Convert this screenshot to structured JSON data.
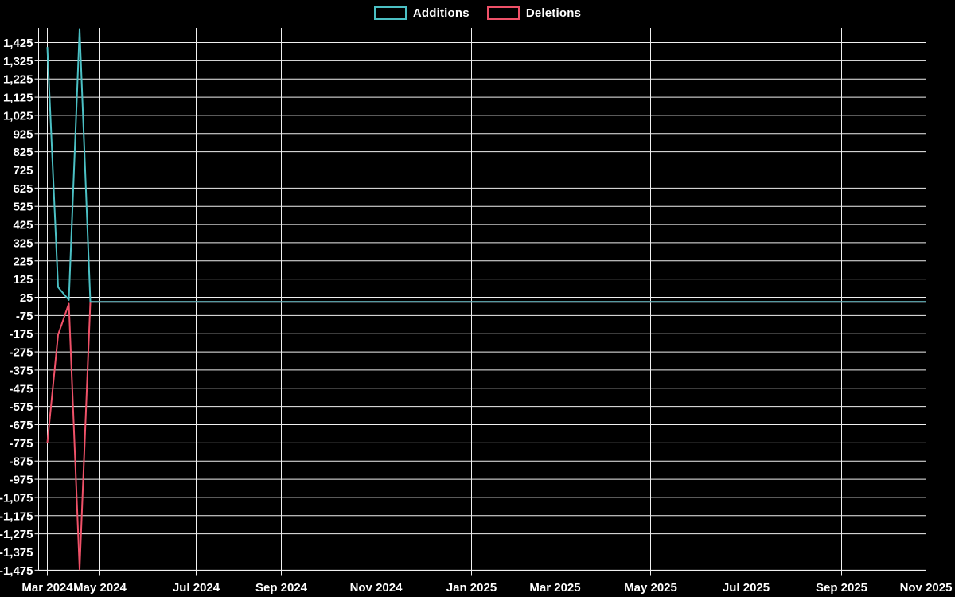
{
  "page": {
    "background_color": "#000000"
  },
  "legend": {
    "items": [
      {
        "label": "Additions",
        "color": "#4bc0c4"
      },
      {
        "label": "Deletions",
        "color": "#ef5168"
      }
    ]
  },
  "chart_data": {
    "type": "line",
    "title": "",
    "xlabel": "",
    "ylabel": "",
    "grid": true,
    "legend_position": "top-center",
    "background": "#000000",
    "grid_color": "#f0f0f0",
    "x_axis": {
      "type": "time",
      "tick_labels": [
        "Mar 2024",
        "May 2024",
        "Jul 2024",
        "Sep 2024",
        "Nov 2024",
        "Jan 2025",
        "Mar 2025",
        "May 2025",
        "Jul 2025",
        "Sep 2025",
        "Nov 2025"
      ]
    },
    "y_axis": {
      "min": -1475,
      "max": 1525,
      "tick_step": 100,
      "tick_labels": [
        "1,425",
        "1,325",
        "1,225",
        "1,125",
        "1,025",
        "925",
        "825",
        "725",
        "625",
        "525",
        "425",
        "325",
        "225",
        "125",
        "25",
        "-75",
        "-175",
        "-275",
        "-375",
        "-475",
        "-575",
        "-675",
        "-775",
        "-875",
        "-975",
        "-1,075",
        "-1,175",
        "-1,275",
        "-1,375",
        "-1,475"
      ]
    },
    "x": [
      "2024-03-10",
      "2024-03-17",
      "2024-03-24",
      "2024-03-31",
      "2024-04-07",
      "2025-11-30"
    ],
    "series": [
      {
        "name": "Additions",
        "color": "#4bc0c4",
        "values": [
          1400,
          80,
          10,
          1500,
          0,
          0
        ]
      },
      {
        "name": "Deletions",
        "color": "#ef5168",
        "values": [
          -775,
          -180,
          -10,
          -1470,
          0,
          0
        ]
      }
    ]
  }
}
